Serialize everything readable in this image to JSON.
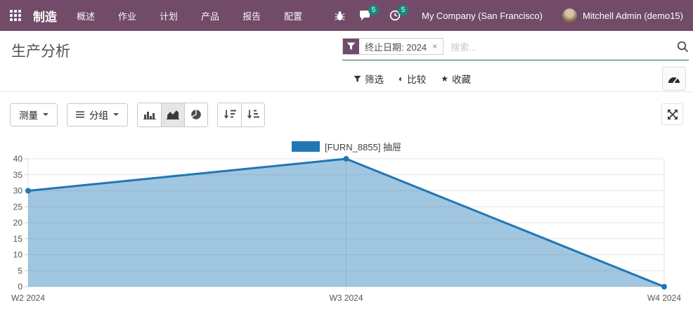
{
  "topbar": {
    "app_name": "制造",
    "menu": [
      {
        "label": "概述"
      },
      {
        "label": "作业"
      },
      {
        "label": "计划"
      },
      {
        "label": "产品"
      },
      {
        "label": "报告"
      },
      {
        "label": "配置"
      }
    ],
    "messages_badge": "5",
    "activities_badge": "5",
    "company": "My Company (San Francisco)",
    "user": "Mitchell Admin (demo15)"
  },
  "header": {
    "title": "生产分析",
    "search": {
      "facet_label": "终止日期: 2024",
      "facet_remove": "×",
      "placeholder": "搜索..."
    },
    "controls": {
      "filters": "筛选",
      "compare": "比较",
      "favorites": "收藏"
    },
    "icon_glyphs": {
      "compare": "◐",
      "favorite": "★"
    }
  },
  "toolbar": {
    "measures_label": "测量",
    "groupby_label": "分组"
  },
  "chart_data": {
    "type": "area",
    "title": "",
    "categories": [
      "W2 2024",
      "W3 2024",
      "W4 2024"
    ],
    "series": [
      {
        "name": "[FURN_8855] 抽屉",
        "values": [
          30,
          40,
          0
        ]
      }
    ],
    "xlabel": "",
    "ylabel": "",
    "ylim": [
      0,
      40
    ],
    "ytick_step": 5,
    "grid": true,
    "legend_position": "top",
    "line_color": "#1f77b4",
    "fill_color": "rgba(31, 119, 180, 0.42)",
    "marker_radius": 4
  },
  "colors": {
    "topbar_bg": "#714B67",
    "badge_bg": "#17897d",
    "search_underline": "#2d605c",
    "chart_line": "#1f77b4"
  }
}
